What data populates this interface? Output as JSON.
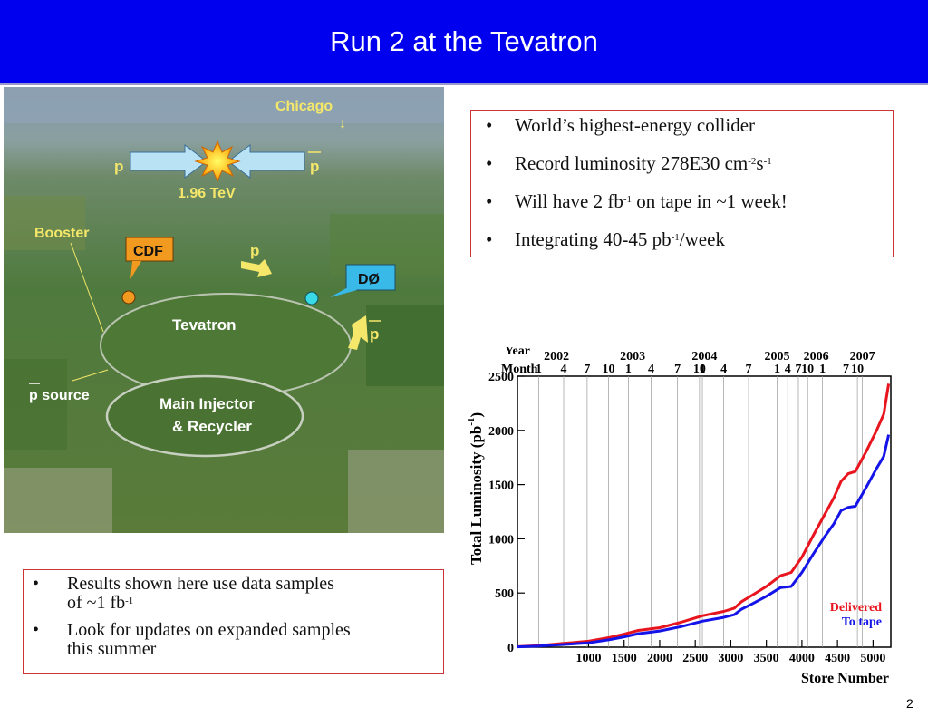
{
  "slide": {
    "title": "Run 2 at the Tevatron",
    "page_number": "2"
  },
  "photo": {
    "labels": {
      "chicago": "Chicago",
      "chicago_arrow": "↓",
      "p_left": "p",
      "p_right": "p",
      "energy": "1.96 TeV",
      "booster": "Booster",
      "cdf": "CDF",
      "p_top": "p",
      "d0": "DØ",
      "tevatron": "Tevatron",
      "pbar_right": "p",
      "p_source": "p source",
      "main_injector_1": "Main Injector",
      "main_injector_2": "& Recycler"
    }
  },
  "top_bullets": [
    {
      "bullet": "•",
      "parts": [
        "World’s highest-energy collider"
      ]
    },
    {
      "bullet": "•",
      "parts": [
        "Record luminosity 278E30 cm",
        "-2",
        "s",
        "-1"
      ]
    },
    {
      "bullet": "•",
      "parts": [
        "Will have 2 fb",
        "-1",
        " on tape in ~1 week!"
      ]
    },
    {
      "bullet": "•",
      "parts": [
        "Integrating 40-45 pb",
        "-1",
        "/week"
      ]
    }
  ],
  "bottom_bullets": [
    {
      "bullet": "•",
      "line1": "Results shown here use data samples",
      "line2a": "of ~1 fb",
      "line2sup": "-1"
    },
    {
      "bullet": "•",
      "line1": "Look for updates on expanded samples",
      "line2": "this summer"
    }
  ],
  "chart_data": {
    "type": "line",
    "ylabel": "Total Luminosity (pb",
    "ylabel_sup": "-1",
    "ylabel_close": ")",
    "xlabel": "Store Number",
    "xlim": [
      0,
      5250
    ],
    "ylim": [
      0,
      2500
    ],
    "x_ticks": [
      1000,
      1500,
      2000,
      2500,
      3000,
      3500,
      4000,
      4500,
      5000
    ],
    "x_tick_labels": [
      "1000",
      "1500",
      "2000",
      "2500",
      "3000",
      "3500",
      "4000",
      "4500",
      "5000"
    ],
    "y_ticks": [
      0,
      500,
      1000,
      1500,
      2000,
      2500
    ],
    "y_tick_labels": [
      "0",
      "500",
      "1000",
      "1500",
      "2000",
      "2500"
    ],
    "year_row_label": "Year",
    "month_row_label": "Month",
    "years": [
      {
        "label": "2002",
        "x": 550
      },
      {
        "label": "2003",
        "x": 1620
      },
      {
        "label": "2004",
        "x": 2630
      },
      {
        "label": "2005",
        "x": 3650
      },
      {
        "label": "2006",
        "x": 4200
      },
      {
        "label": "2007",
        "x": 4850
      }
    ],
    "months": [
      {
        "label": "1",
        "x": 300
      },
      {
        "label": "4",
        "x": 650
      },
      {
        "label": "7",
        "x": 980
      },
      {
        "label": "10",
        "x": 1280
      },
      {
        "label": "1",
        "x": 1560
      },
      {
        "label": "4",
        "x": 1880
      },
      {
        "label": "7",
        "x": 2250
      },
      {
        "label": "10",
        "x": 2560
      },
      {
        "label": "1",
        "x": 2600
      },
      {
        "label": "4",
        "x": 2900
      },
      {
        "label": "7",
        "x": 3250
      },
      {
        "label": "1",
        "x": 3650
      },
      {
        "label": "4",
        "x": 3800
      },
      {
        "label": "7",
        "x": 3950
      },
      {
        "label": "10",
        "x": 4080
      },
      {
        "label": "1",
        "x": 4290
      },
      {
        "label": "7",
        "x": 4620
      },
      {
        "label": "10",
        "x": 4780
      }
    ],
    "vgrid_x": [
      300,
      650,
      980,
      1280,
      1560,
      1880,
      2250,
      2560,
      2600,
      2900,
      3250,
      3650,
      3800,
      3950,
      4080,
      4290,
      4620,
      4780,
      4850
    ],
    "series": [
      {
        "name": "Delivered",
        "color": "#e8141e",
        "x": [
          0,
          300,
          650,
          1000,
          1300,
          1500,
          1700,
          2000,
          2300,
          2600,
          2900,
          3050,
          3150,
          3300,
          3500,
          3700,
          3850,
          4000,
          4150,
          4300,
          4450,
          4550,
          4650,
          4750,
          4900,
          5050,
          5150,
          5220
        ],
        "values": [
          5,
          15,
          35,
          55,
          90,
          120,
          155,
          180,
          230,
          290,
          330,
          360,
          420,
          480,
          560,
          660,
          690,
          830,
          1020,
          1200,
          1380,
          1530,
          1600,
          1620,
          1800,
          2000,
          2150,
          2430
        ]
      },
      {
        "name": "To tape",
        "color": "#1414e8",
        "x": [
          0,
          300,
          650,
          1000,
          1300,
          1500,
          1700,
          2000,
          2300,
          2600,
          2900,
          3050,
          3150,
          3300,
          3500,
          3700,
          3850,
          4000,
          4150,
          4300,
          4450,
          4550,
          4650,
          4750,
          4900,
          5050,
          5150,
          5220
        ],
        "values": [
          3,
          10,
          25,
          40,
          70,
          95,
          125,
          150,
          190,
          240,
          275,
          300,
          350,
          400,
          470,
          550,
          560,
          690,
          850,
          1000,
          1140,
          1260,
          1290,
          1300,
          1470,
          1650,
          1760,
          1960
        ]
      }
    ],
    "legend": [
      "Delivered",
      "To tape"
    ],
    "legend_position": "bottom-right"
  },
  "colors": {
    "title_bar": "#0000ee",
    "box_border": "#cc3333"
  }
}
